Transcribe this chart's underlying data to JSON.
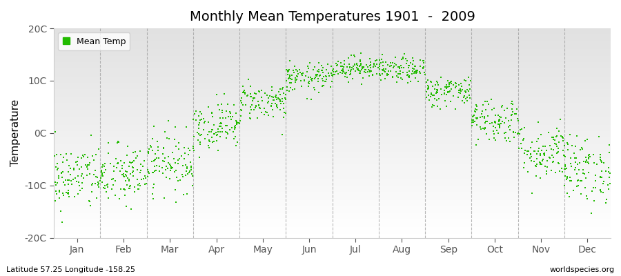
{
  "title": "Monthly Mean Temperatures 1901  -  2009",
  "ylabel": "Temperature",
  "ylim": [
    -20,
    20
  ],
  "yticks": [
    -20,
    -10,
    0,
    10,
    20
  ],
  "ytick_labels": [
    "-20C",
    "-10C",
    "0C",
    "10C",
    "20C"
  ],
  "months": [
    "Jan",
    "Feb",
    "Mar",
    "Apr",
    "May",
    "Jun",
    "Jul",
    "Aug",
    "Sep",
    "Oct",
    "Nov",
    "Dec"
  ],
  "dot_color": "#22bb00",
  "fig_bg_color": "#ffffff",
  "legend_label": "Mean Temp",
  "subtitle_left": "Latitude 57.25 Longitude -158.25",
  "subtitle_right": "worldspecies.org",
  "monthly_means": [
    -8.5,
    -8.2,
    -5.5,
    1.5,
    6.0,
    10.5,
    12.5,
    12.0,
    8.0,
    2.5,
    -3.5,
    -7.0
  ],
  "monthly_stds": [
    3.2,
    3.0,
    2.8,
    2.3,
    1.8,
    1.4,
    1.1,
    1.2,
    1.5,
    2.2,
    2.8,
    3.2
  ],
  "n_years": 109,
  "seed": 42
}
